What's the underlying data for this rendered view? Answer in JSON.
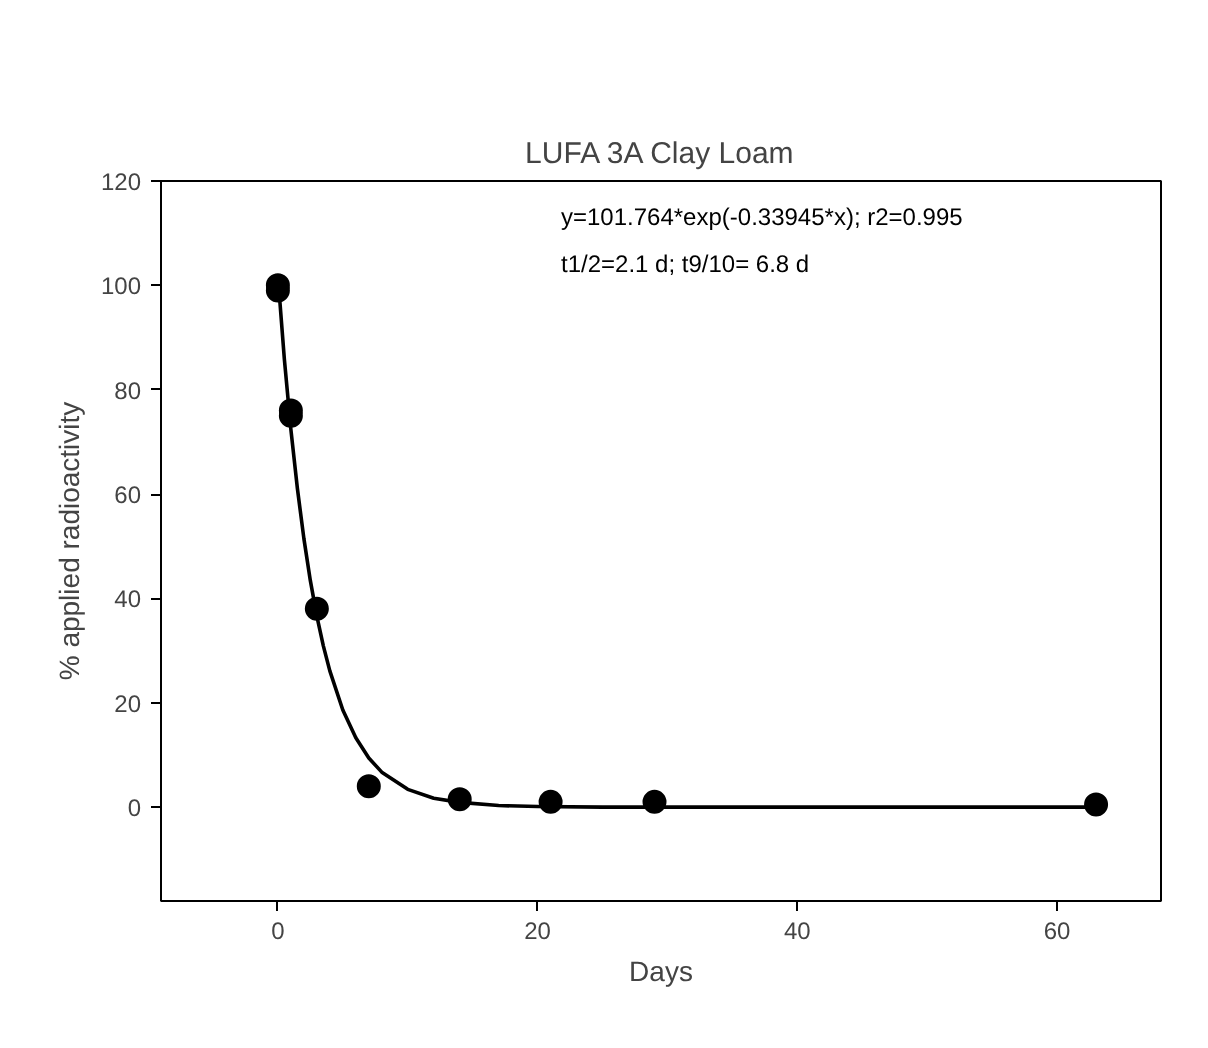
{
  "chart_data": {
    "type": "scatter",
    "title": "LUFA 3A Clay Loam",
    "xlabel": "Days",
    "ylabel": "% applied radioactivity",
    "xlim": [
      -9,
      68
    ],
    "ylim": [
      -18,
      120
    ],
    "xticks": [
      0,
      20,
      40,
      60
    ],
    "yticks": [
      0,
      20,
      40,
      60,
      80,
      100,
      120
    ],
    "grid": false,
    "annotations": [
      "y=101.764*exp(-0.33945*x); r2=0.995",
      "t1/2=2.1 d; t9/10= 6.8 d"
    ],
    "series": [
      {
        "marker": "circle",
        "color": "#000000",
        "x": [
          0,
          0,
          1,
          1,
          3,
          7,
          14,
          21,
          29,
          63
        ],
        "values": [
          100,
          99,
          76,
          75,
          38,
          4,
          1.5,
          1,
          1,
          0.5
        ]
      },
      {
        "type": "line",
        "marker": "none",
        "line_style": "solid",
        "color": "#000000",
        "x": [
          0,
          0.5,
          1,
          1.5,
          2,
          2.5,
          3,
          3.5,
          4,
          5,
          6,
          7,
          8,
          10,
          12,
          14,
          17,
          20,
          25,
          30,
          40,
          50,
          63
        ],
        "values": [
          101.8,
          85.8,
          72.4,
          61.1,
          51.5,
          43.4,
          36.6,
          30.9,
          26.1,
          18.6,
          13.3,
          9.4,
          6.7,
          3.4,
          1.7,
          0.9,
          0.3,
          0.1,
          0,
          0,
          0,
          0,
          0
        ]
      }
    ]
  }
}
